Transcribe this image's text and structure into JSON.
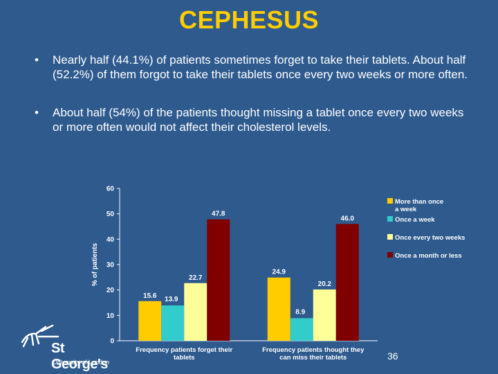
{
  "slide": {
    "title": "CEPHESUS",
    "bullets": [
      "Nearly half (44.1%) of patients sometimes forget to take their tablets. About half (52.2%) of them forgot to take their tablets once every two weeks or more often.",
      "About half (54%) of the patients thought missing a tablet once every two weeks or more often would not affect their cholesterol levels."
    ],
    "bullet_symbol": "•",
    "page_number": "36"
  },
  "logo": {
    "name": "St George's",
    "subtitle": "University of London"
  },
  "chart_data": {
    "type": "bar",
    "ylabel": "% of patients",
    "ylim": [
      0,
      60
    ],
    "yticks": [
      0,
      10,
      20,
      30,
      40,
      50,
      60
    ],
    "grid": false,
    "legend_position": "right",
    "categories": [
      [
        "Frequency patients forget their",
        "tablets"
      ],
      [
        "Frequency patients thought they",
        "can miss their tablets"
      ]
    ],
    "series": [
      {
        "name": [
          "More than once",
          "a week"
        ],
        "color": "#ffcc00",
        "values": [
          15.6,
          24.9
        ],
        "labels": [
          "15.6",
          "24.9"
        ]
      },
      {
        "name": [
          "Once a week"
        ],
        "color": "#33cccc",
        "values": [
          13.9,
          8.9
        ],
        "labels": [
          "13.9",
          "8.9"
        ]
      },
      {
        "name": [
          "Once every two weeks"
        ],
        "color": "#ffff99",
        "values": [
          22.7,
          20.2
        ],
        "labels": [
          "22.7",
          "20.2"
        ]
      },
      {
        "name": [
          "Once a month or less"
        ],
        "color": "#800000",
        "values": [
          47.8,
          46.0
        ],
        "labels": [
          "47.8",
          "46.0"
        ]
      }
    ]
  }
}
